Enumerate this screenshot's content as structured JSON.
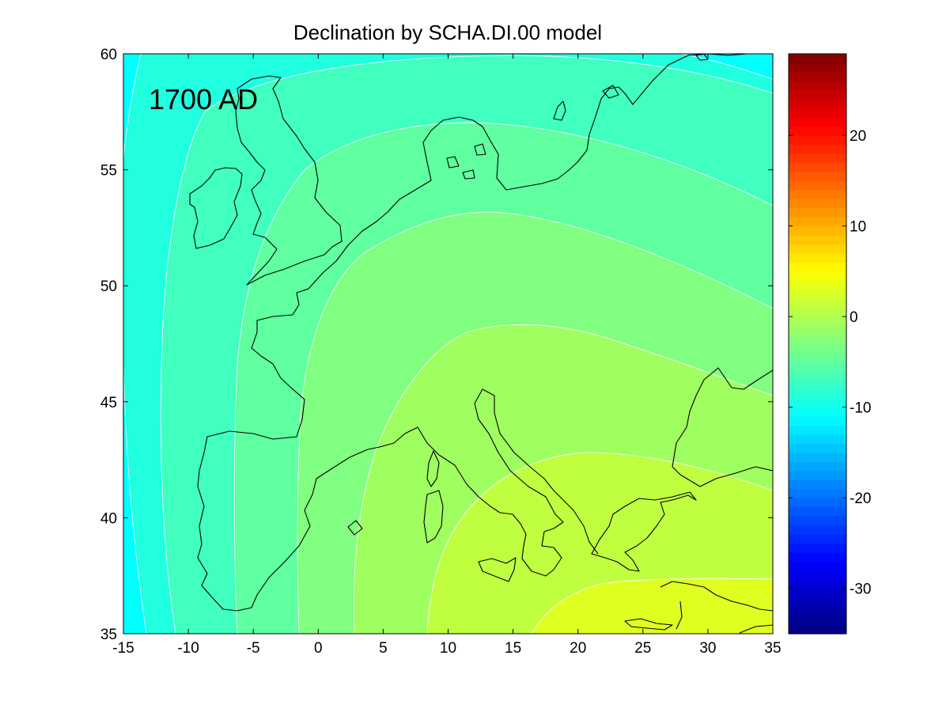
{
  "chart_data": {
    "type": "heatmap",
    "title": "Declination by SCHA.DI.00 model",
    "annotation": "1700 AD",
    "xlabel": "",
    "ylabel": "",
    "xlim": [
      -15,
      35
    ],
    "ylim": [
      35,
      60
    ],
    "x_ticks": [
      -15,
      -10,
      -5,
      0,
      5,
      10,
      15,
      20,
      25,
      30,
      35
    ],
    "y_ticks": [
      35,
      40,
      45,
      50,
      55,
      60
    ],
    "colorbar": {
      "range": [
        -35,
        29
      ],
      "ticks": [
        -30,
        -20,
        -10,
        0,
        10,
        20
      ],
      "colormap": "jet"
    },
    "contour_levels": [
      -12,
      -10,
      -8,
      -6,
      -4,
      -2,
      0
    ],
    "contour_fill_colors": {
      "-12": "#00ffff",
      "-10": "#20ffdf",
      "-8": "#40ffbf",
      "-6": "#60ff9f",
      "-4": "#80ff80",
      "-2": "#a0ff60",
      "0": "#c0ff40",
      "2": "#dfff20"
    },
    "overlay": "coastlines",
    "grid": false
  }
}
